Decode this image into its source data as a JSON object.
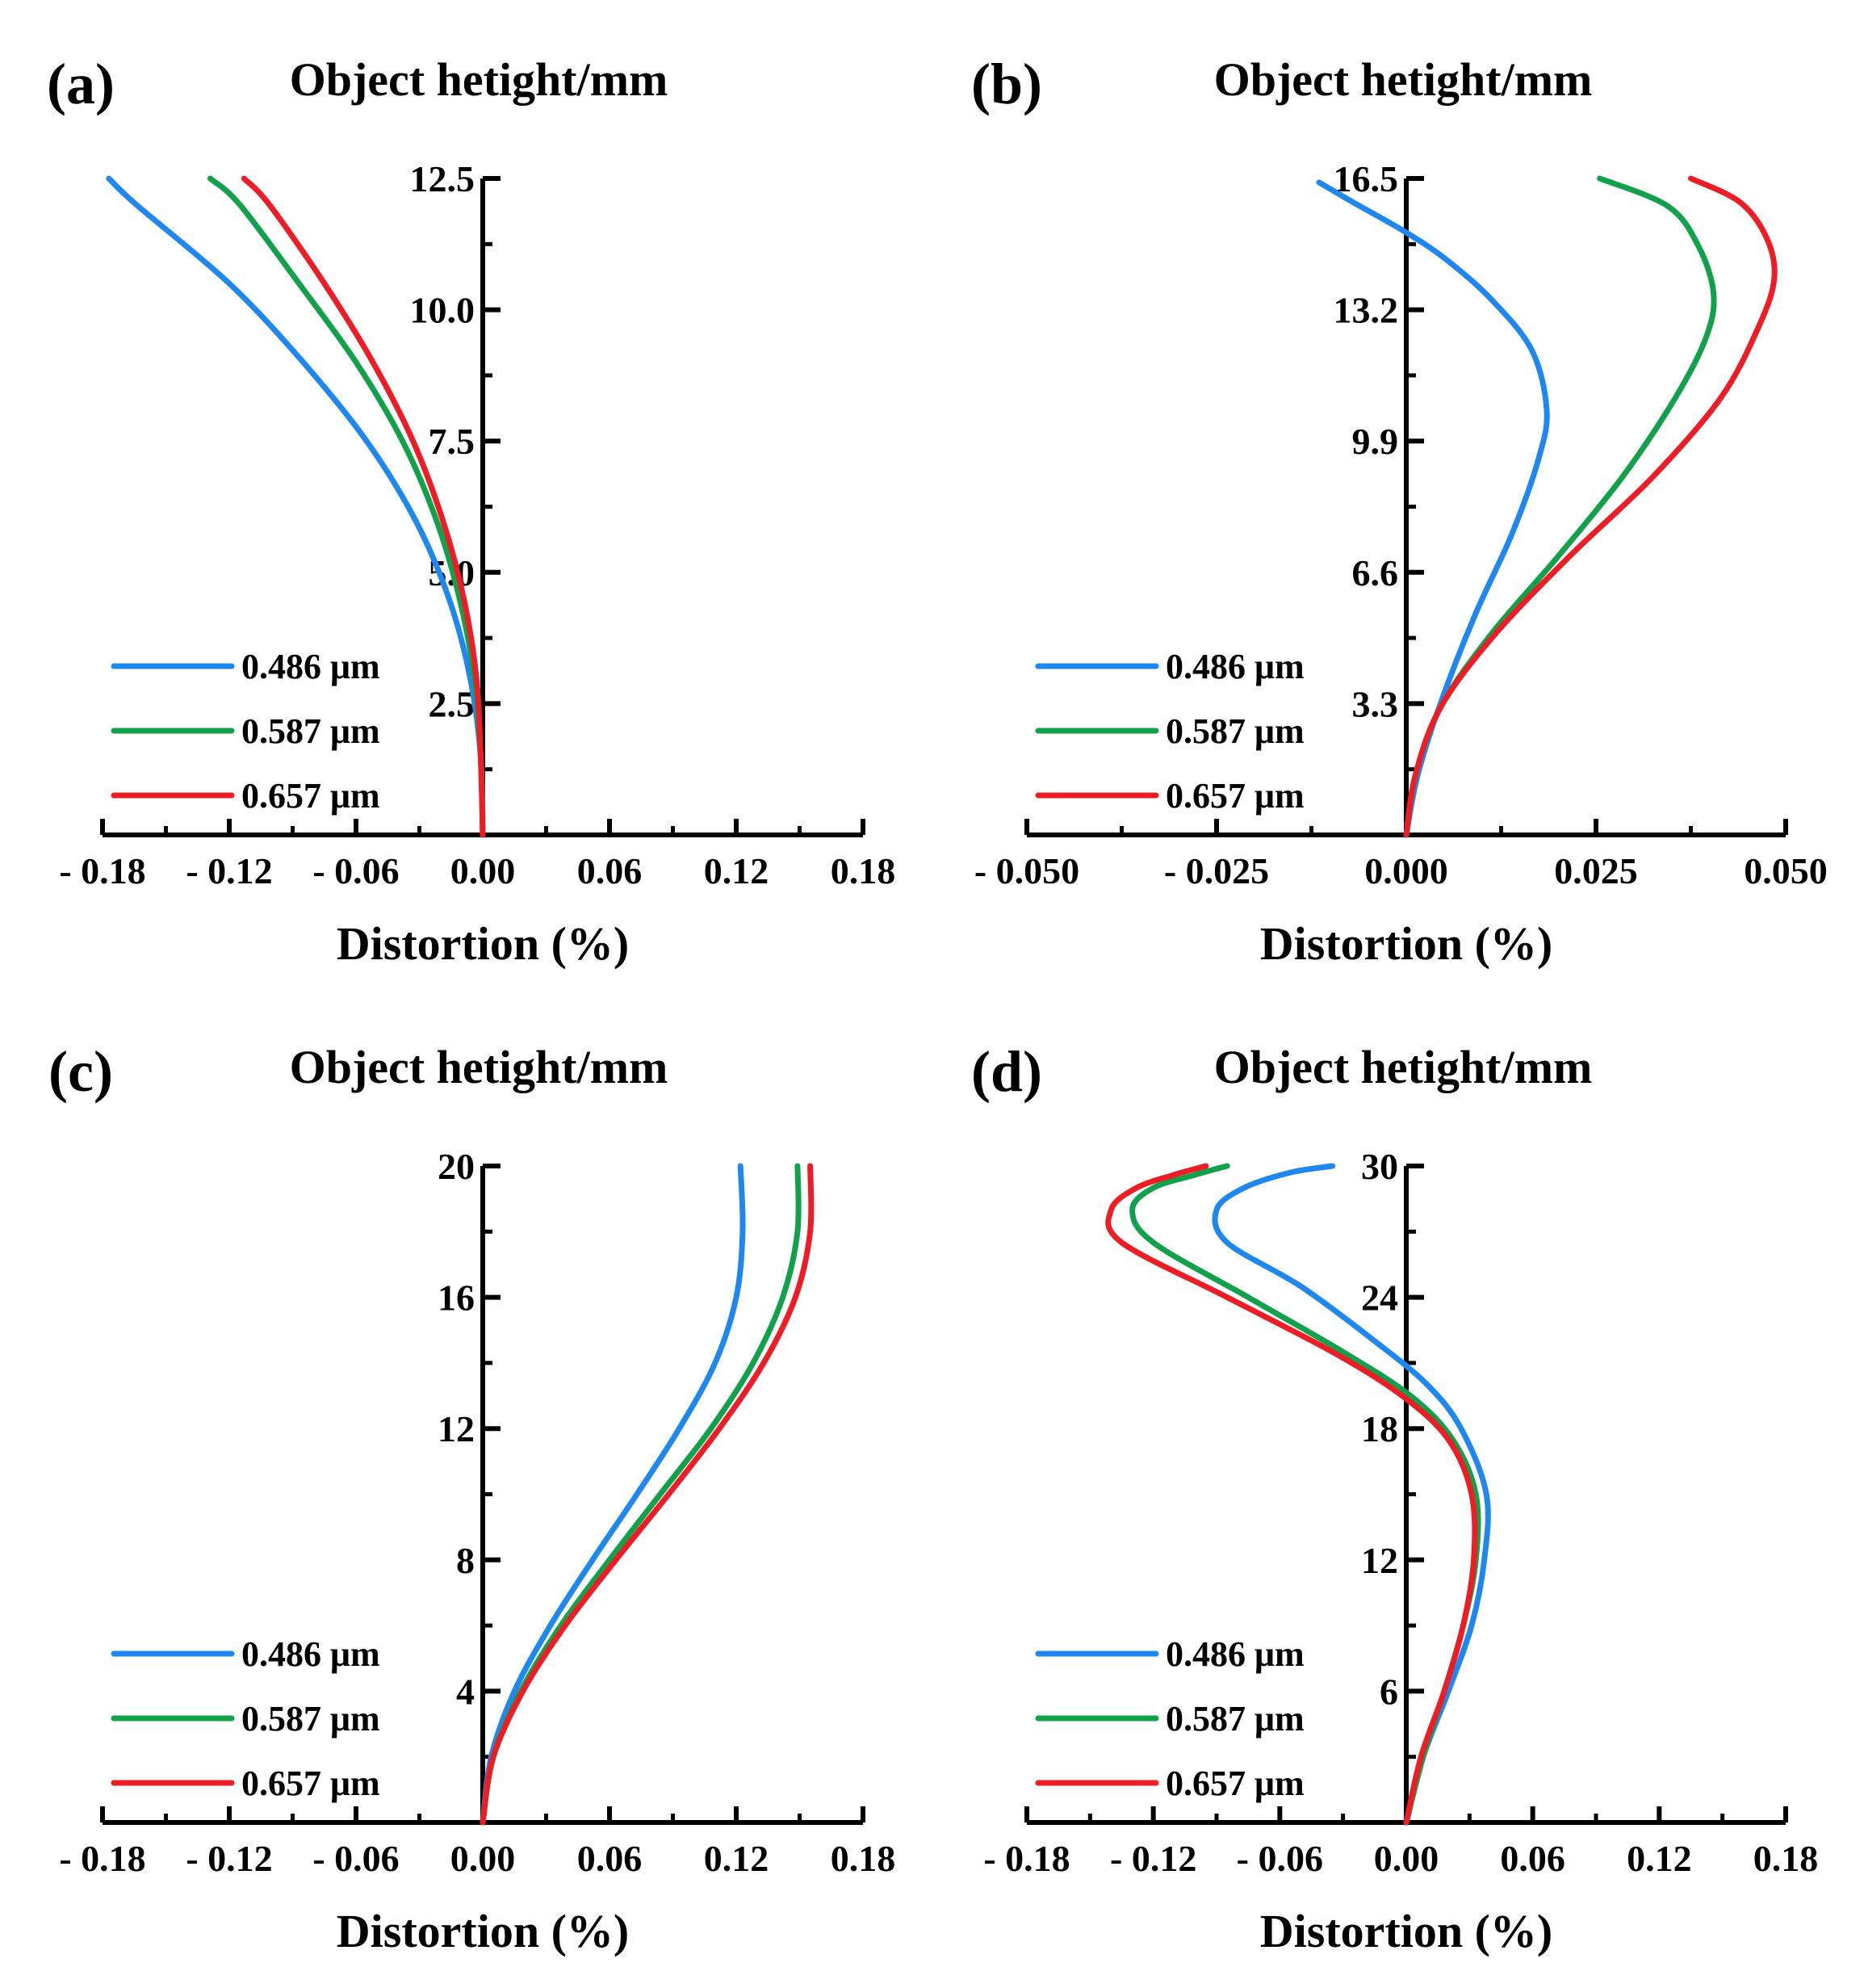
{
  "figure": {
    "colors": {
      "blue": "#1E88F0",
      "green": "#12A14B",
      "red": "#EE1C25",
      "axis": "#000000"
    }
  },
  "chart_data": [
    {
      "type": "line",
      "panel_label": "(a)",
      "title": "Object hetight/mm",
      "xlabel": "Distortion (%)",
      "ylabel": "Object hetight/mm",
      "xlim": [
        -0.18,
        0.18
      ],
      "ylim": [
        0,
        12.5
      ],
      "x_ticks": [
        -0.18,
        -0.12,
        -0.06,
        0.0,
        0.06,
        0.12,
        0.18
      ],
      "x_tick_labels": [
        "- 0.18",
        "- 0.12",
        "- 0.06",
        "0.00",
        "0.06",
        "0.12",
        "0.18"
      ],
      "y_ticks": [
        2.5,
        5.0,
        7.5,
        10.0,
        12.5
      ],
      "y_tick_labels": [
        "2.5",
        "5.0",
        "7.5",
        "10.0",
        "12.5"
      ],
      "legend": [
        "0.486 μm",
        "0.587 μm",
        "0.657 μm"
      ],
      "series": [
        {
          "name": "0.486 μm",
          "color": "#1E88F0",
          "points": [
            [
              0,
              0
            ],
            [
              -0.001,
              1.5
            ],
            [
              -0.006,
              3
            ],
            [
              -0.016,
              4.5
            ],
            [
              -0.032,
              6
            ],
            [
              -0.055,
              7.5
            ],
            [
              -0.085,
              9
            ],
            [
              -0.12,
              10.5
            ],
            [
              -0.164,
              12
            ],
            [
              -0.177,
              12.5
            ]
          ]
        },
        {
          "name": "0.587 μm",
          "color": "#12A14B",
          "points": [
            [
              0,
              0
            ],
            [
              -0.001,
              1.5
            ],
            [
              -0.004,
              3
            ],
            [
              -0.011,
              4.5
            ],
            [
              -0.022,
              6
            ],
            [
              -0.038,
              7.5
            ],
            [
              -0.06,
              9
            ],
            [
              -0.087,
              10.5
            ],
            [
              -0.115,
              12
            ],
            [
              -0.129,
              12.5
            ]
          ]
        },
        {
          "name": "0.657 μm",
          "color": "#EE1C25",
          "points": [
            [
              0,
              0
            ],
            [
              -0.001,
              1.5
            ],
            [
              -0.003,
              3
            ],
            [
              -0.009,
              4.5
            ],
            [
              -0.019,
              6
            ],
            [
              -0.033,
              7.5
            ],
            [
              -0.052,
              9
            ],
            [
              -0.075,
              10.5
            ],
            [
              -0.101,
              12
            ],
            [
              -0.113,
              12.5
            ]
          ]
        }
      ]
    },
    {
      "type": "line",
      "panel_label": "(b)",
      "title": "Object hetight/mm",
      "xlabel": "Distortion (%)",
      "ylabel": "Object hetight/mm",
      "xlim": [
        -0.05,
        0.05
      ],
      "ylim": [
        0,
        16.5
      ],
      "x_ticks": [
        -0.05,
        -0.025,
        0.0,
        0.025,
        0.05
      ],
      "x_tick_labels": [
        "- 0.050",
        "- 0.025",
        "0.000",
        "0.025",
        "0.050"
      ],
      "y_ticks": [
        3.3,
        6.6,
        9.9,
        13.2,
        16.5
      ],
      "y_tick_labels": [
        "3.3",
        "6.6",
        "9.9",
        "13.2",
        "16.5"
      ],
      "legend": [
        "0.486 μm",
        "0.587 μm",
        "0.657 μm"
      ],
      "series": [
        {
          "name": "0.486 μm",
          "color": "#1E88F0",
          "points": [
            [
              0,
              0
            ],
            [
              0.0015,
              1.5
            ],
            [
              0.0045,
              3.3
            ],
            [
              0.009,
              5.5
            ],
            [
              0.014,
              7.6
            ],
            [
              0.0175,
              9.5
            ],
            [
              0.0185,
              10.7
            ],
            [
              0.0165,
              12.2
            ],
            [
              0.011,
              13.5
            ],
            [
              0.005,
              14.5
            ],
            [
              -0.0005,
              15.2
            ],
            [
              -0.007,
              15.9
            ],
            [
              -0.0115,
              16.4
            ]
          ]
        },
        {
          "name": "0.587 μm",
          "color": "#12A14B",
          "points": [
            [
              0,
              0
            ],
            [
              0.0012,
              1.5
            ],
            [
              0.0045,
              3.2
            ],
            [
              0.011,
              5.0
            ],
            [
              0.02,
              7.0
            ],
            [
              0.0285,
              9.0
            ],
            [
              0.0355,
              11.0
            ],
            [
              0.0395,
              12.5
            ],
            [
              0.0405,
              13.6
            ],
            [
              0.0385,
              14.8
            ],
            [
              0.0345,
              15.8
            ],
            [
              0.0255,
              16.5
            ]
          ]
        },
        {
          "name": "0.657 μm",
          "color": "#EE1C25",
          "points": [
            [
              0,
              0
            ],
            [
              0.0012,
              1.5
            ],
            [
              0.0045,
              3.2
            ],
            [
              0.0115,
              5.0
            ],
            [
              0.0215,
              7.0
            ],
            [
              0.0325,
              9.0
            ],
            [
              0.0415,
              11.0
            ],
            [
              0.0465,
              12.8
            ],
            [
              0.0485,
              14.0
            ],
            [
              0.0475,
              15.0
            ],
            [
              0.044,
              15.9
            ],
            [
              0.0375,
              16.5
            ]
          ]
        }
      ]
    },
    {
      "type": "line",
      "panel_label": "(c)",
      "title": "Object hetight/mm",
      "xlabel": "Distortion (%)",
      "ylabel": "Object hetight/mm",
      "xlim": [
        -0.18,
        0.18
      ],
      "ylim": [
        0,
        20
      ],
      "x_ticks": [
        -0.18,
        -0.12,
        -0.06,
        0.0,
        0.06,
        0.12,
        0.18
      ],
      "x_tick_labels": [
        "- 0.18",
        "- 0.12",
        "- 0.06",
        "0.00",
        "0.06",
        "0.12",
        "0.18"
      ],
      "y_ticks": [
        4,
        8,
        12,
        16,
        20
      ],
      "y_tick_labels": [
        "4",
        "8",
        "12",
        "16",
        "20"
      ],
      "legend": [
        "0.486 μm",
        "0.587 μm",
        "0.657 μm"
      ],
      "series": [
        {
          "name": "0.486 μm",
          "color": "#1E88F0",
          "points": [
            [
              0,
              0
            ],
            [
              0.004,
              2
            ],
            [
              0.015,
              4
            ],
            [
              0.032,
              6
            ],
            [
              0.052,
              8
            ],
            [
              0.073,
              10
            ],
            [
              0.093,
              12
            ],
            [
              0.11,
              14
            ],
            [
              0.12,
              16
            ],
            [
              0.123,
              18
            ],
            [
              0.122,
              20
            ]
          ]
        },
        {
          "name": "0.587 μm",
          "color": "#12A14B",
          "points": [
            [
              0,
              0
            ],
            [
              0.005,
              2
            ],
            [
              0.018,
              4
            ],
            [
              0.037,
              6
            ],
            [
              0.06,
              8
            ],
            [
              0.084,
              10
            ],
            [
              0.108,
              12
            ],
            [
              0.128,
              14
            ],
            [
              0.142,
              16
            ],
            [
              0.149,
              18
            ],
            [
              0.149,
              20
            ]
          ]
        },
        {
          "name": "0.657 μm",
          "color": "#EE1C25",
          "points": [
            [
              0,
              0
            ],
            [
              0.005,
              2
            ],
            [
              0.019,
              4
            ],
            [
              0.039,
              6
            ],
            [
              0.063,
              8
            ],
            [
              0.088,
              10
            ],
            [
              0.112,
              12
            ],
            [
              0.133,
              14
            ],
            [
              0.148,
              16
            ],
            [
              0.155,
              18
            ],
            [
              0.155,
              20
            ]
          ]
        }
      ]
    },
    {
      "type": "line",
      "panel_label": "(d)",
      "title": "Object hetight/mm",
      "xlabel": "Distortion (%)",
      "ylabel": "Object hetight/mm",
      "xlim": [
        -0.18,
        0.18
      ],
      "ylim": [
        0,
        30
      ],
      "x_ticks": [
        -0.18,
        -0.12,
        -0.06,
        0.0,
        0.06,
        0.12,
        0.18
      ],
      "x_tick_labels": [
        "- 0.18",
        "- 0.12",
        "- 0.06",
        "0.00",
        "0.06",
        "0.12",
        "0.18"
      ],
      "y_ticks": [
        6,
        12,
        18,
        24,
        30
      ],
      "y_tick_labels": [
        "6",
        "12",
        "18",
        "24",
        "30"
      ],
      "legend": [
        "0.486 μm",
        "0.587 μm",
        "0.657 μm"
      ],
      "series": [
        {
          "name": "0.486 μm",
          "color": "#1E88F0",
          "points": [
            [
              0,
              0
            ],
            [
              0.008,
              3
            ],
            [
              0.02,
              6
            ],
            [
              0.031,
              9
            ],
            [
              0.037,
              12
            ],
            [
              0.038,
              15
            ],
            [
              0.026,
              18
            ],
            [
              0.01,
              20
            ],
            [
              -0.015,
              22
            ],
            [
              -0.05,
              24.5
            ],
            [
              -0.085,
              26.5
            ],
            [
              -0.09,
              28
            ],
            [
              -0.077,
              29
            ],
            [
              -0.055,
              29.7
            ],
            [
              -0.035,
              30
            ]
          ]
        },
        {
          "name": "0.587 μm",
          "color": "#12A14B",
          "points": [
            [
              0,
              0
            ],
            [
              0.008,
              3
            ],
            [
              0.018,
              6
            ],
            [
              0.027,
              9
            ],
            [
              0.033,
              12
            ],
            [
              0.033,
              15
            ],
            [
              0.022,
              17.5
            ],
            [
              0.002,
              19.5
            ],
            [
              -0.03,
              21.5
            ],
            [
              -0.075,
              24
            ],
            [
              -0.12,
              26.5
            ],
            [
              -0.13,
              28
            ],
            [
              -0.12,
              29
            ],
            [
              -0.1,
              29.6
            ],
            [
              -0.085,
              30
            ]
          ]
        },
        {
          "name": "0.657 μm",
          "color": "#EE1C25",
          "points": [
            [
              0,
              0
            ],
            [
              0.007,
              3
            ],
            [
              0.018,
              6
            ],
            [
              0.027,
              9
            ],
            [
              0.032,
              12
            ],
            [
              0.031,
              15
            ],
            [
              0.02,
              17.5
            ],
            [
              -0.002,
              19.5
            ],
            [
              -0.035,
              21.5
            ],
            [
              -0.085,
              24
            ],
            [
              -0.135,
              26.5
            ],
            [
              -0.14,
              28
            ],
            [
              -0.128,
              29
            ],
            [
              -0.11,
              29.6
            ],
            [
              -0.095,
              30
            ]
          ]
        }
      ]
    }
  ]
}
